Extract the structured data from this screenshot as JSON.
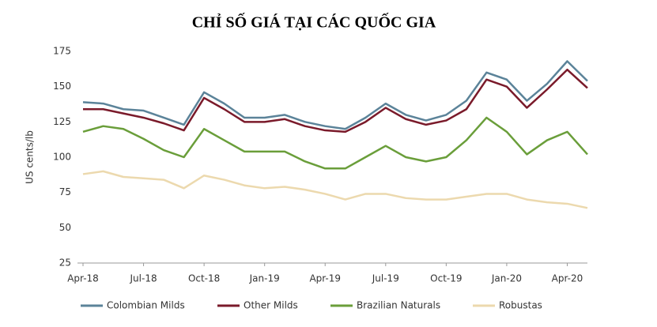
{
  "chart_data": {
    "type": "line",
    "title": "CHỈ SỐ GIÁ TẠI CÁC QUỐC GIA",
    "ylabel": "US cents/lb",
    "categories": [
      "Apr-18",
      null,
      null,
      "Jul-18",
      null,
      null,
      "Oct-18",
      null,
      null,
      "Jan-19",
      null,
      null,
      "Apr-19",
      null,
      null,
      "Jul-19",
      null,
      null,
      "Oct-19",
      null,
      null,
      "Jan-20",
      null,
      null,
      "Apr-20",
      null
    ],
    "series": [
      {
        "name": "Colombian Milds",
        "color": "#5b8399",
        "values": [
          139,
          138,
          134,
          133,
          128,
          123,
          146,
          138,
          128,
          128,
          130,
          125,
          122,
          120,
          128,
          138,
          130,
          126,
          130,
          140,
          160,
          155,
          140,
          152,
          168,
          154
        ]
      },
      {
        "name": "Other Milds",
        "color": "#7a1a2a",
        "values": [
          134,
          134,
          131,
          128,
          124,
          119,
          142,
          134,
          125,
          125,
          127,
          122,
          119,
          118,
          125,
          135,
          127,
          123,
          126,
          134,
          155,
          150,
          135,
          148,
          162,
          149
        ]
      },
      {
        "name": "Brazilian Naturals",
        "color": "#6a9e3a",
        "values": [
          118,
          122,
          120,
          113,
          105,
          100,
          120,
          112,
          104,
          104,
          104,
          97,
          92,
          92,
          100,
          108,
          100,
          97,
          100,
          112,
          128,
          118,
          102,
          112,
          118,
          102
        ]
      },
      {
        "name": "Robustas",
        "color": "#ecd9ae",
        "values": [
          88,
          90,
          86,
          85,
          84,
          78,
          87,
          84,
          80,
          78,
          79,
          77,
          74,
          70,
          74,
          74,
          71,
          70,
          70,
          72,
          74,
          74,
          70,
          68,
          67,
          64
        ]
      }
    ],
    "ylim": [
      25,
      175
    ],
    "yticks": [
      25,
      50,
      75,
      100,
      125,
      150,
      175
    ],
    "grid": false,
    "legend": "bottom"
  }
}
